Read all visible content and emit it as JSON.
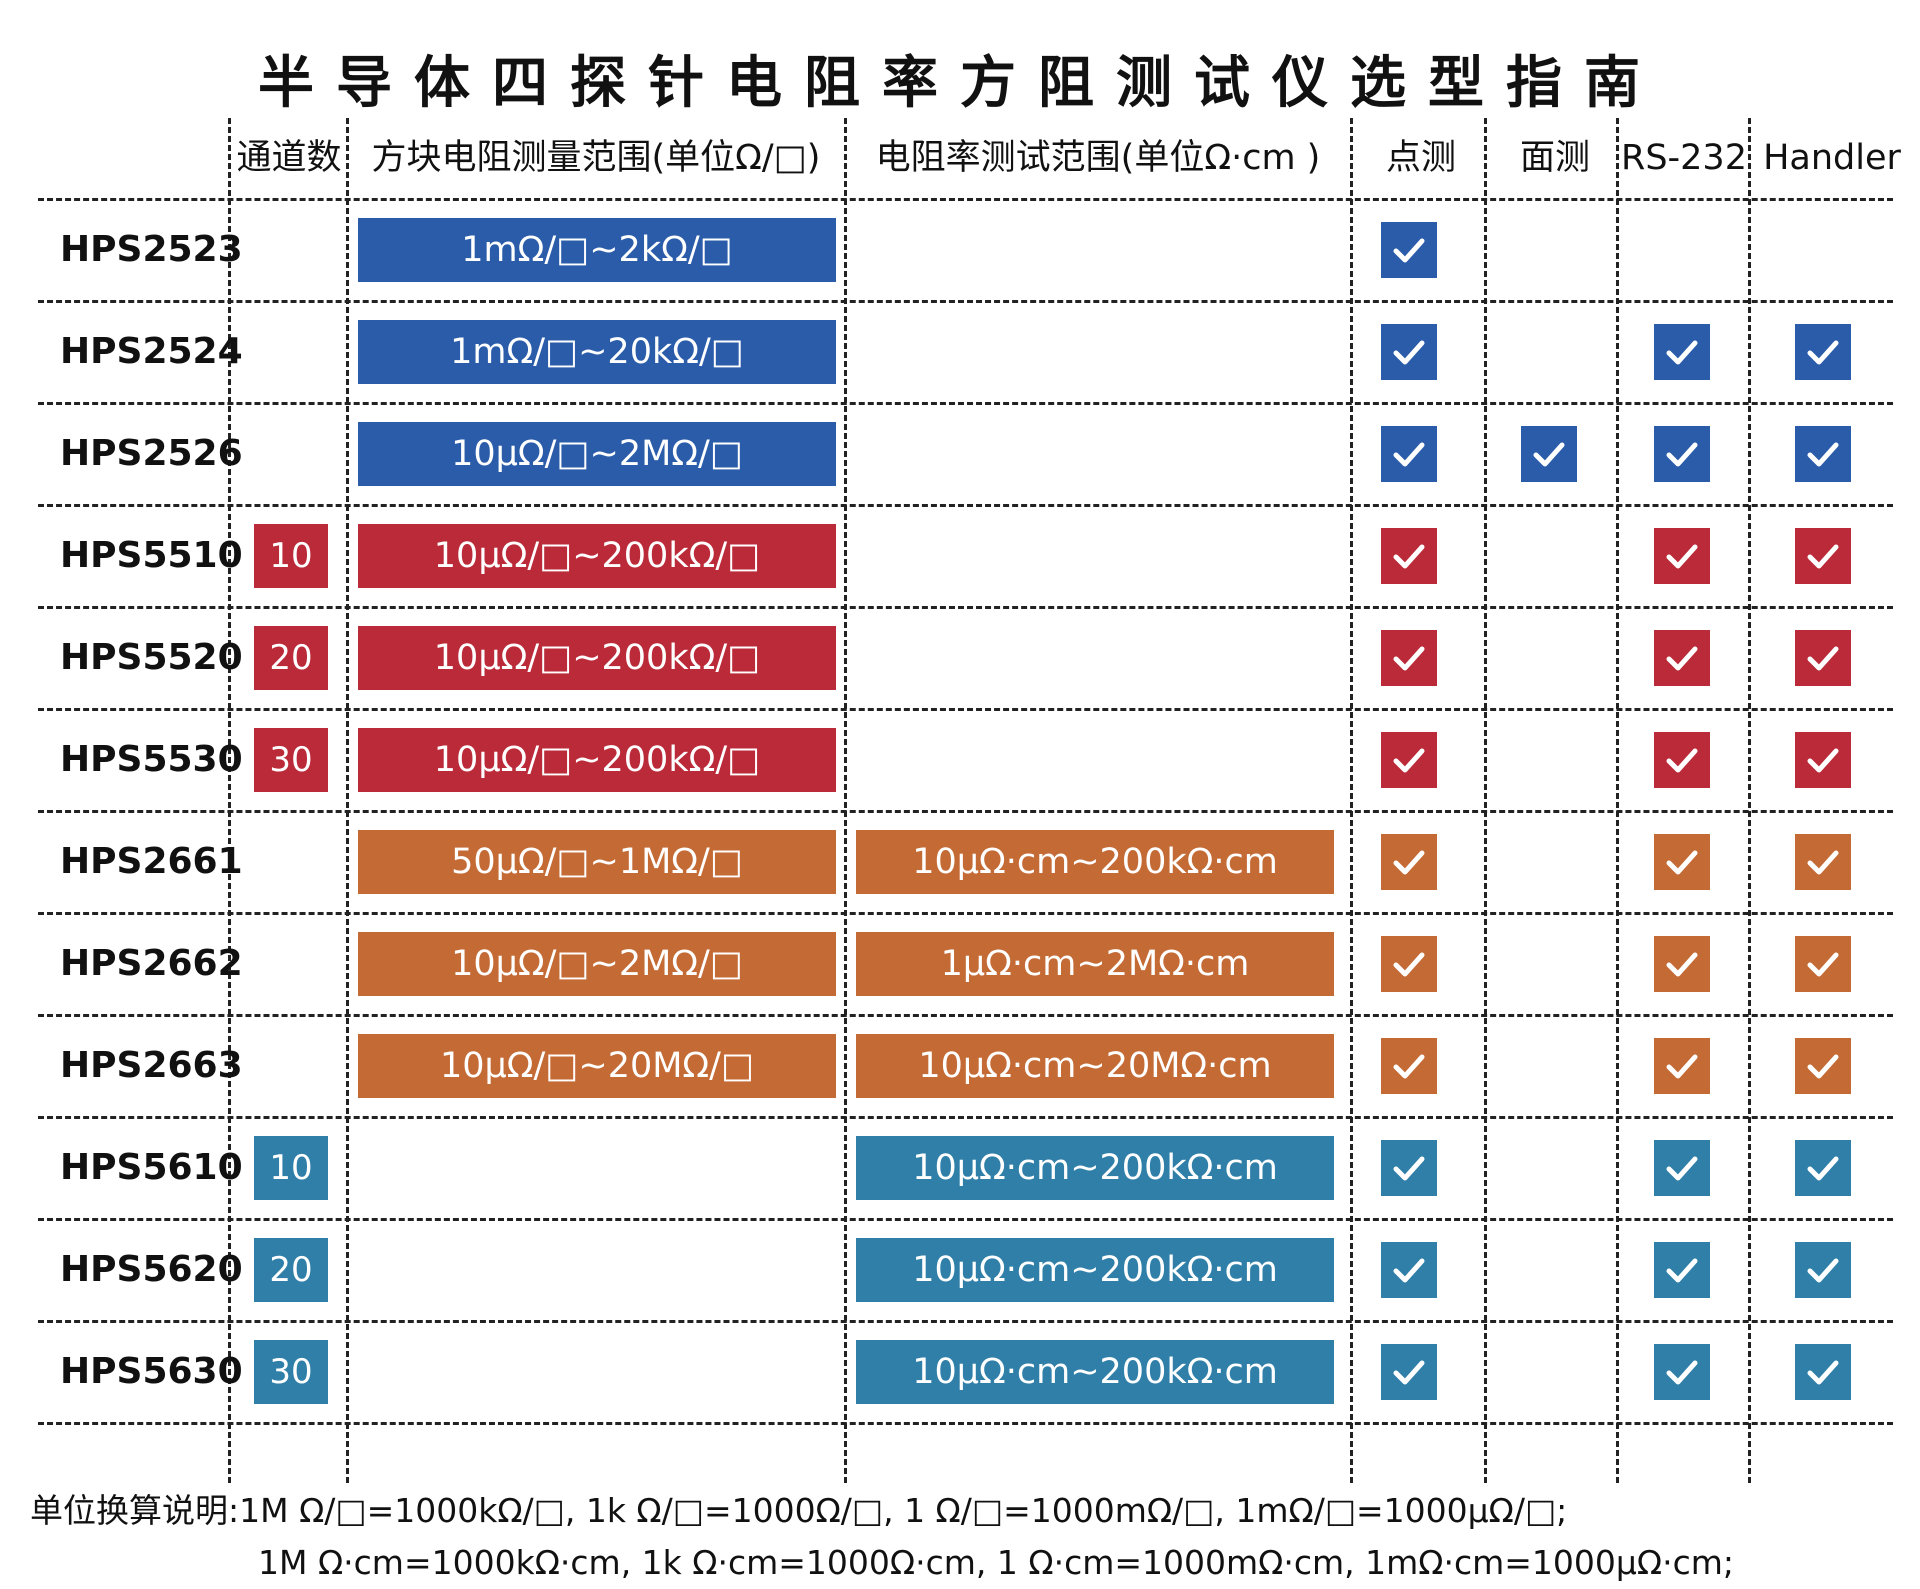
{
  "title": "半导体四探针电阻率方阻测试仪选型指南",
  "headers": {
    "channels": "通道数",
    "sheet": "方块电阻测量范围(单位Ω/□)",
    "resistivity": "电阻率测试范围(单位Ω·cm )",
    "point": "点测",
    "area": "面测",
    "rs232": "RS-232",
    "handler": "Handler"
  },
  "colors": {
    "blue": "#2a5caa",
    "red": "#bb2a38",
    "orange": "#c46a35",
    "teal": "#2f7fa8",
    "grid": "#222222"
  },
  "rows": [
    {
      "model": "HPS2523",
      "color": "blue",
      "channels": "",
      "sheet": "1mΩ/□~2kΩ/□",
      "resistivity": "",
      "point": true,
      "area": false,
      "rs232": false,
      "handler": false
    },
    {
      "model": "HPS2524",
      "color": "blue",
      "channels": "",
      "sheet": "1mΩ/□~20kΩ/□",
      "resistivity": "",
      "point": true,
      "area": false,
      "rs232": true,
      "handler": true
    },
    {
      "model": "HPS2526",
      "color": "blue",
      "channels": "",
      "sheet": "10μΩ/□~2MΩ/□",
      "resistivity": "",
      "point": true,
      "area": true,
      "rs232": true,
      "handler": true
    },
    {
      "model": "HPS5510",
      "color": "red",
      "channels": "10",
      "sheet": "10μΩ/□~200kΩ/□",
      "resistivity": "",
      "point": true,
      "area": false,
      "rs232": true,
      "handler": true
    },
    {
      "model": "HPS5520",
      "color": "red",
      "channels": "20",
      "sheet": "10μΩ/□~200kΩ/□",
      "resistivity": "",
      "point": true,
      "area": false,
      "rs232": true,
      "handler": true
    },
    {
      "model": "HPS5530",
      "color": "red",
      "channels": "30",
      "sheet": "10μΩ/□~200kΩ/□",
      "resistivity": "",
      "point": true,
      "area": false,
      "rs232": true,
      "handler": true
    },
    {
      "model": "HPS2661",
      "color": "orange",
      "channels": "",
      "sheet": "50μΩ/□~1MΩ/□",
      "resistivity": "10μΩ·cm~200kΩ·cm",
      "point": true,
      "area": false,
      "rs232": true,
      "handler": true
    },
    {
      "model": "HPS2662",
      "color": "orange",
      "channels": "",
      "sheet": "10μΩ/□~2MΩ/□",
      "resistivity": "1μΩ·cm~2MΩ·cm",
      "point": true,
      "area": false,
      "rs232": true,
      "handler": true
    },
    {
      "model": "HPS2663",
      "color": "orange",
      "channels": "",
      "sheet": "10μΩ/□~20MΩ/□",
      "resistivity": "10μΩ·cm~20MΩ·cm",
      "point": true,
      "area": false,
      "rs232": true,
      "handler": true
    },
    {
      "model": "HPS5610",
      "color": "teal",
      "channels": "10",
      "sheet": "",
      "resistivity": "10μΩ·cm~200kΩ·cm",
      "point": true,
      "area": false,
      "rs232": true,
      "handler": true
    },
    {
      "model": "HPS5620",
      "color": "teal",
      "channels": "20",
      "sheet": "",
      "resistivity": "10μΩ·cm~200kΩ·cm",
      "point": true,
      "area": false,
      "rs232": true,
      "handler": true
    },
    {
      "model": "HPS5630",
      "color": "teal",
      "channels": "30",
      "sheet": "",
      "resistivity": "10μΩ·cm~200kΩ·cm",
      "point": true,
      "area": false,
      "rs232": true,
      "handler": true
    }
  ],
  "notes": {
    "line1": "单位换算说明:1M Ω/□=1000kΩ/□, 1k Ω/□=1000Ω/□, 1 Ω/□=1000mΩ/□, 1mΩ/□=1000μΩ/□;",
    "line2": "1M Ω·cm=1000kΩ·cm, 1k Ω·cm=1000Ω·cm, 1 Ω·cm=1000mΩ·cm, 1mΩ·cm=1000μΩ·cm;"
  }
}
